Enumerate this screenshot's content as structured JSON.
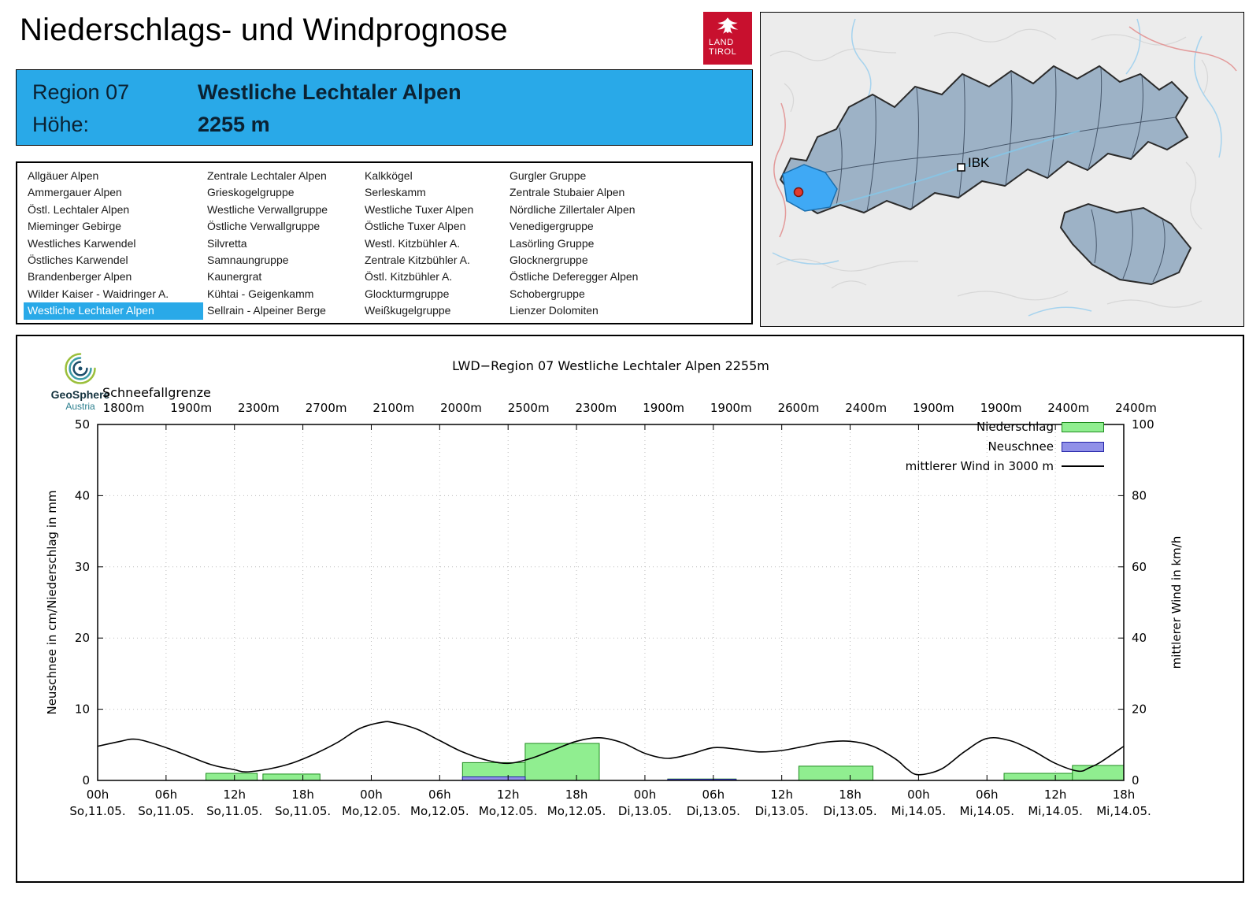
{
  "header": {
    "title": "Niederschlags- und Windprognose",
    "logo": {
      "line1": "LAND",
      "line2": "TIROL"
    }
  },
  "region_box": {
    "region_label": "Region 07",
    "region_name": "Westliche Lechtaler Alpen",
    "height_label": "Höhe:",
    "height_value": "2255 m"
  },
  "region_list": {
    "selected": "Westliche Lechtaler Alpen",
    "highlight_color": "#29a9e8",
    "columns": [
      [
        "Allgäuer Alpen",
        "Ammergauer Alpen",
        "Östl. Lechtaler Alpen",
        "Mieminger Gebirge",
        "Westliches Karwendel",
        "Östliches Karwendel",
        "Brandenberger Alpen",
        "Wilder Kaiser - Waidringer A.",
        "Westliche Lechtaler Alpen"
      ],
      [
        "Zentrale Lechtaler Alpen",
        "Grieskogelgruppe",
        "Westliche Verwallgruppe",
        "Östliche Verwallgruppe",
        "Silvretta",
        "Samnaungruppe",
        "Kaunergrat",
        "Kühtai - Geigenkamm",
        "Sellrain - Alpeiner Berge"
      ],
      [
        "Kalkkögel",
        "Serleskamm",
        "Westliche Tuxer Alpen",
        "Östliche Tuxer Alpen",
        "Westl. Kitzbühler A.",
        "Zentrale Kitzbühler A.",
        "Östl. Kitzbühler A.",
        "Glockturmgruppe",
        "Weißkugelgruppe"
      ],
      [
        "Gurgler Gruppe",
        "Zentrale Stubaier Alpen",
        "Nördliche Zillertaler Alpen",
        "Venedigergruppe",
        "Lasörling Gruppe",
        "Glocknergruppe",
        "Östliche Deferegger Alpen",
        "Schobergruppe",
        "Lienzer Dolomiten"
      ]
    ]
  },
  "map": {
    "city_label": "IBK",
    "selected_region_color": "#3fa9f5",
    "region_fill": "#9db2c6"
  },
  "geosphere": {
    "name": "GeoSphere",
    "country": "Austria"
  },
  "chart_data": {
    "type": "bar",
    "title": "LWD−Region 07 Westliche Lechtaler Alpen 2255m",
    "x_hours_span": [
      0,
      90
    ],
    "x_ticks": [
      {
        "hour": 0,
        "label": "00h",
        "date": "So,11.05."
      },
      {
        "hour": 6,
        "label": "06h",
        "date": "So,11.05."
      },
      {
        "hour": 12,
        "label": "12h",
        "date": "So,11.05."
      },
      {
        "hour": 18,
        "label": "18h",
        "date": "So,11.05."
      },
      {
        "hour": 24,
        "label": "00h",
        "date": "Mo,12.05."
      },
      {
        "hour": 30,
        "label": "06h",
        "date": "Mo,12.05."
      },
      {
        "hour": 36,
        "label": "12h",
        "date": "Mo,12.05."
      },
      {
        "hour": 42,
        "label": "18h",
        "date": "Mo,12.05."
      },
      {
        "hour": 48,
        "label": "00h",
        "date": "Di,13.05."
      },
      {
        "hour": 54,
        "label": "06h",
        "date": "Di,13.05."
      },
      {
        "hour": 60,
        "label": "12h",
        "date": "Di,13.05."
      },
      {
        "hour": 66,
        "label": "18h",
        "date": "Di,13.05."
      },
      {
        "hour": 72,
        "label": "00h",
        "date": "Mi,14.05."
      },
      {
        "hour": 78,
        "label": "06h",
        "date": "Mi,14.05."
      },
      {
        "hour": 84,
        "label": "12h",
        "date": "Mi,14.05."
      },
      {
        "hour": 90,
        "label": "18h",
        "date": "Mi,14.05."
      }
    ],
    "snowline": {
      "label": "Schneefallgrenze",
      "values": [
        "1800m",
        "1900m",
        "2300m",
        "2700m",
        "2100m",
        "2000m",
        "2500m",
        "2300m",
        "1900m",
        "1900m",
        "2600m",
        "2400m",
        "1900m",
        "1900m",
        "2400m",
        "2400m"
      ]
    },
    "y_left": {
      "label": "Neuschnee in cm/Niederschlag in mm",
      "min": 0,
      "max": 50,
      "ticks": [
        0,
        10,
        20,
        30,
        40,
        50
      ]
    },
    "y_right": {
      "label": "mittlerer Wind in km/h",
      "min": 0,
      "max": 100,
      "ticks": [
        0,
        20,
        40,
        60,
        80,
        100
      ]
    },
    "series": {
      "niederschlag": {
        "label": "Niederschlag",
        "unit": "mm",
        "color": "#90ee90",
        "border": "#1f8c1f",
        "segments": [
          [
            9.5,
            14,
            1.0
          ],
          [
            14.5,
            19.5,
            0.9
          ],
          [
            32,
            37.5,
            2.5
          ],
          [
            37.5,
            44,
            5.2
          ],
          [
            50,
            56,
            0.2
          ],
          [
            61.5,
            68,
            2.0
          ],
          [
            79.5,
            85.5,
            1.0
          ],
          [
            85.5,
            90,
            2.1
          ]
        ]
      },
      "neuschnee": {
        "label": "Neuschnee",
        "unit": "cm",
        "color": "#9090e8",
        "border": "#2424a8",
        "segments": [
          [
            32,
            37.5,
            0.5
          ],
          [
            50,
            56,
            0.15
          ]
        ]
      },
      "wind": {
        "label": "mittlerer Wind in 3000 m",
        "unit": "km/h",
        "color": "#000000",
        "axis": "right",
        "points": [
          [
            0,
            9.6
          ],
          [
            2,
            11
          ],
          [
            3,
            11.6
          ],
          [
            4,
            11.2
          ],
          [
            6,
            9.2
          ],
          [
            8,
            6.8
          ],
          [
            10,
            4.4
          ],
          [
            12,
            3
          ],
          [
            13,
            2.4
          ],
          [
            15,
            3.2
          ],
          [
            17,
            4.8
          ],
          [
            19,
            7.4
          ],
          [
            21,
            10.6
          ],
          [
            23,
            14.6
          ],
          [
            25,
            16.4
          ],
          [
            26,
            16.2
          ],
          [
            28,
            14.4
          ],
          [
            30,
            11.2
          ],
          [
            32,
            8
          ],
          [
            34,
            5.8
          ],
          [
            36,
            4.8
          ],
          [
            38,
            6.2
          ],
          [
            40,
            8.6
          ],
          [
            42,
            11
          ],
          [
            44,
            12
          ],
          [
            46,
            10.6
          ],
          [
            48,
            7.6
          ],
          [
            50,
            6.2
          ],
          [
            52,
            7.4
          ],
          [
            54,
            9.2
          ],
          [
            56,
            8.8
          ],
          [
            58,
            8
          ],
          [
            60,
            8.4
          ],
          [
            62,
            9.6
          ],
          [
            64,
            10.8
          ],
          [
            66,
            11
          ],
          [
            68,
            9.6
          ],
          [
            70,
            6
          ],
          [
            71,
            3.2
          ],
          [
            72,
            1.6
          ],
          [
            74,
            3.2
          ],
          [
            76,
            8
          ],
          [
            78,
            11.8
          ],
          [
            80,
            11.2
          ],
          [
            82,
            8.4
          ],
          [
            84,
            4.8
          ],
          [
            86,
            2.6
          ],
          [
            87,
            3.6
          ],
          [
            88,
            5.2
          ],
          [
            90,
            9.6
          ]
        ]
      }
    },
    "grid": true,
    "legend_position": "top-right"
  }
}
